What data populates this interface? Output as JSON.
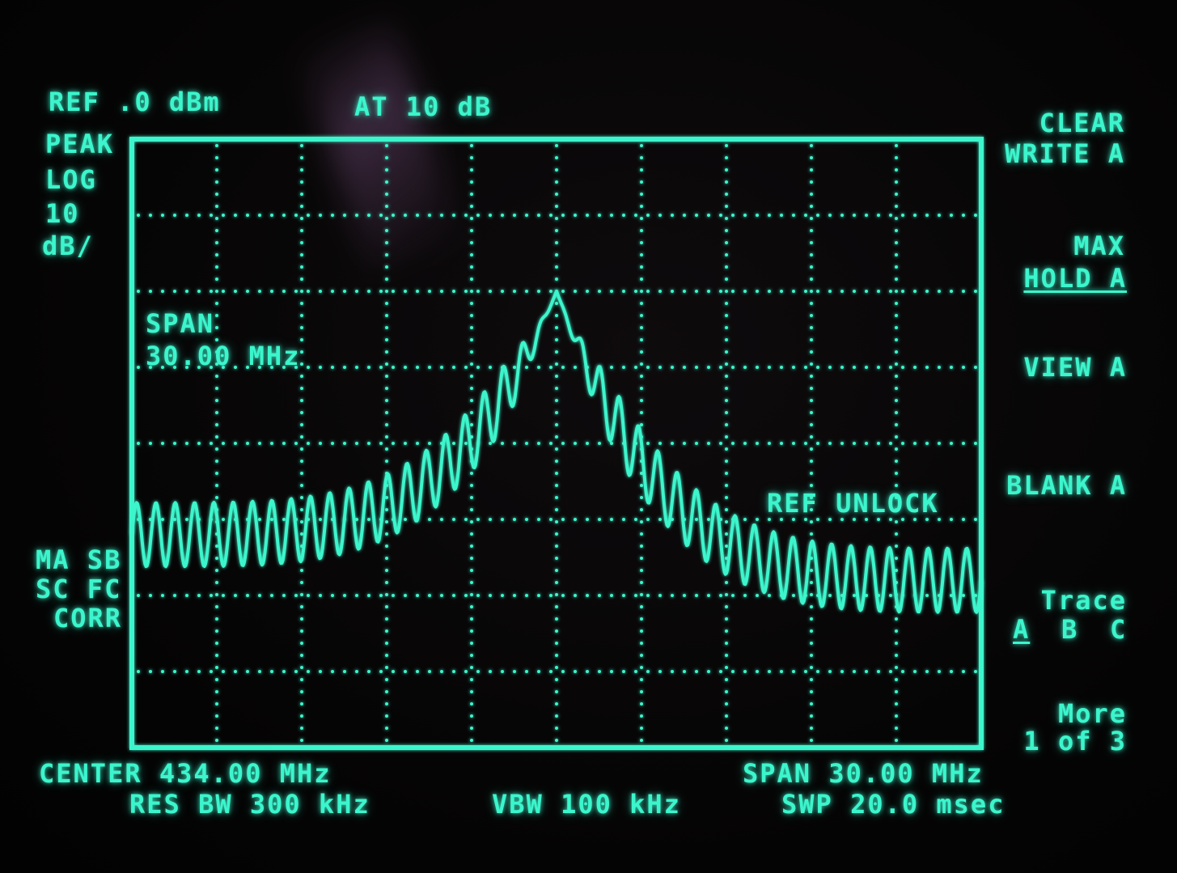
{
  "header": {
    "ref_level": "REF .0 dBm",
    "attenuation": "AT 10 dB"
  },
  "left_panel": {
    "detector": "PEAK",
    "scale_line1": "LOG",
    "scale_line2": "10",
    "scale_line3": "dB/",
    "status_line1": "MA SB",
    "status_line2": "SC FC",
    "status_line3": "CORR"
  },
  "graticule_annotations": {
    "span_label": "SPAN",
    "span_value": "30.00 MHz",
    "warning": "REF UNLOCK"
  },
  "softkeys": [
    {
      "line1": "CLEAR",
      "line2": "WRITE A"
    },
    {
      "line1": "MAX",
      "line2": "HOLD A"
    },
    {
      "line1": "VIEW A",
      "line2": ""
    },
    {
      "line1": "BLANK A",
      "line2": ""
    },
    {
      "line1": "Trace",
      "line2_a": "A",
      "line2_b": "B",
      "line2_c": "C"
    },
    {
      "line1": "More",
      "line2": "1 of 3"
    }
  ],
  "footer": {
    "center": "CENTER 434.00 MHz",
    "res_bw": "RES BW 300 kHz",
    "vbw": "VBW 100 kHz",
    "span": "SPAN 30.00 MHz",
    "sweep": "SWP 20.0 msec"
  },
  "colors": {
    "phosphor": "#3cf5cc",
    "background": "#050505"
  },
  "trace": {
    "center_mhz": 434.0,
    "span_mhz": 30.0,
    "ref_level_dbm": 0,
    "scale_db_per_div": 10,
    "peak_freq_mhz": 434.0,
    "peak_level_dbm": -20,
    "left_edge_level_dbm": -52,
    "right_edge_level_dbm": -58,
    "ripple_count": 44
  }
}
